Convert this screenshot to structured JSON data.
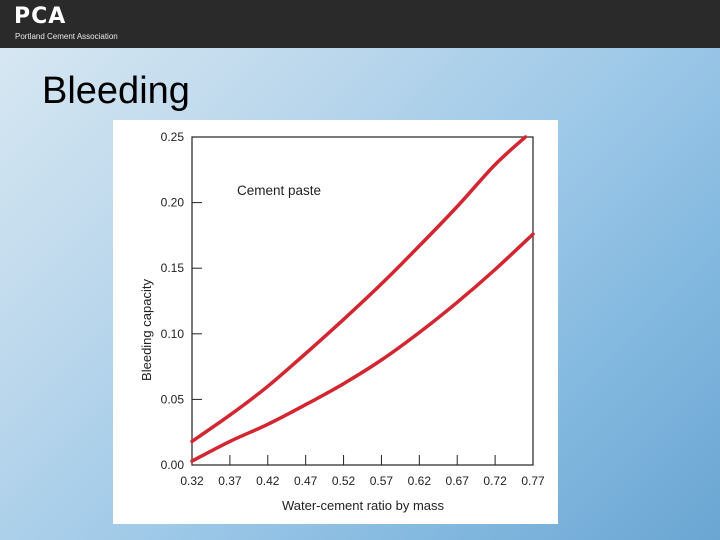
{
  "header": {
    "logo_text": "PCA",
    "logo_subtitle": "Portland Cement Association"
  },
  "slide": {
    "title": "Bleeding"
  },
  "chart_data": {
    "type": "line",
    "annotation": "Cement paste",
    "xlabel": "Water-cement ratio by mass",
    "ylabel": "Bleeding capacity",
    "xlim": [
      0.32,
      0.77
    ],
    "ylim": [
      0.0,
      0.25
    ],
    "x_ticks": [
      "0.32",
      "0.37",
      "0.42",
      "0.47",
      "0.52",
      "0.57",
      "0.62",
      "0.67",
      "0.72",
      "0.77"
    ],
    "y_ticks": [
      "0.00",
      "0.05",
      "0.10",
      "0.15",
      "0.20",
      "0.25"
    ],
    "grid": false,
    "line_color": "#d22630",
    "series": [
      {
        "x": [
          0.32,
          0.37,
          0.42,
          0.47,
          0.52,
          0.57,
          0.62,
          0.67,
          0.72,
          0.76
        ],
        "values": [
          0.018,
          0.038,
          0.06,
          0.085,
          0.111,
          0.138,
          0.167,
          0.197,
          0.229,
          0.25
        ]
      },
      {
        "x": [
          0.32,
          0.37,
          0.42,
          0.47,
          0.52,
          0.57,
          0.62,
          0.67,
          0.72,
          0.77
        ],
        "values": [
          0.003,
          0.018,
          0.031,
          0.046,
          0.062,
          0.08,
          0.101,
          0.124,
          0.149,
          0.176
        ]
      }
    ]
  }
}
